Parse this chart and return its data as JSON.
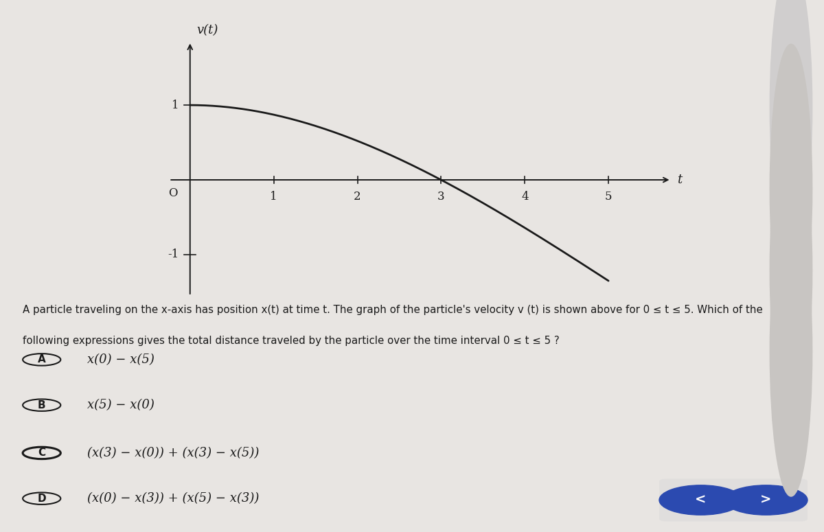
{
  "background_color": "#e8e5e2",
  "graph_bg_color": "#e8e5e2",
  "curve_color": "#1a1a1a",
  "axis_color": "#1a1a1a",
  "text_color": "#1a1a1a",
  "title_graph": "v(t)",
  "xlabel": "t",
  "x_ticks": [
    1,
    2,
    3,
    4,
    5
  ],
  "y_ticks": [
    -1,
    1
  ],
  "origin_label": "O",
  "question_text_line1": "A particle traveling on the x-axis has position x(t) at time t. The graph of the particle's velocity v (t) is shown above for 0 ≤ t ≤ 5. Which of the",
  "question_text_line2": "following expressions gives the total distance traveled by the particle over the time interval 0 ≤ t ≤ 5 ?",
  "choices": [
    {
      "label": "A",
      "text": "x(0) − x(5)",
      "circled": false
    },
    {
      "label": "B",
      "text": "x(5) − x(0)",
      "circled": false
    },
    {
      "label": "C",
      "text": "(x(3) − x(0)) + (x(3) − x(5))",
      "circled": true
    },
    {
      "label": "D",
      "text": "(x(0) − x(3)) + (x(5) − x(3))",
      "circled": false
    }
  ],
  "nav_button_color": "#2b4ab0",
  "nav_button_bg": "#e0dedd",
  "right_sidebar_circles": [
    "#d0cece",
    "#c8c5c2",
    "#c8c5c2",
    "#c8c5c2"
  ]
}
